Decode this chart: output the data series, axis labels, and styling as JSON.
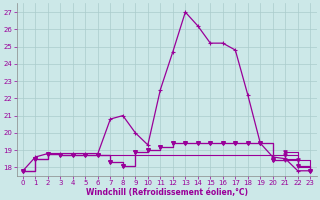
{
  "xlabel": "Windchill (Refroidissement éolien,°C)",
  "bg_color": "#cce8e8",
  "grid_color": "#aacccc",
  "line_color": "#990099",
  "xlim": [
    -0.5,
    23.5
  ],
  "ylim": [
    17.5,
    27.5
  ],
  "x_ticks": [
    0,
    1,
    2,
    3,
    4,
    5,
    6,
    7,
    8,
    9,
    10,
    11,
    12,
    13,
    14,
    15,
    16,
    17,
    18,
    19,
    20,
    21,
    22,
    23
  ],
  "y_ticks": [
    18,
    19,
    20,
    21,
    22,
    23,
    24,
    25,
    26,
    27
  ],
  "series": [
    {
      "y": [
        17.8,
        18.6,
        18.8,
        18.8,
        18.8,
        18.8,
        18.8,
        20.8,
        21.0,
        20.0,
        19.3,
        22.5,
        24.7,
        27.0,
        26.2,
        25.2,
        25.2,
        24.8,
        22.2,
        19.4,
        18.6,
        18.5,
        17.8,
        17.8
      ],
      "marker": "+",
      "ms": 3.5,
      "lw": 0.9,
      "drawstyle": "default"
    },
    {
      "y": [
        17.8,
        18.5,
        18.8,
        18.7,
        18.7,
        18.7,
        18.7,
        18.7,
        18.7,
        18.7,
        18.7,
        18.7,
        18.7,
        18.7,
        18.7,
        18.7,
        18.7,
        18.7,
        18.7,
        18.7,
        18.7,
        18.5,
        18.0,
        17.8
      ],
      "marker": null,
      "ms": 0,
      "lw": 0.8,
      "drawstyle": "steps-post"
    },
    {
      "y": [
        17.8,
        18.5,
        18.8,
        18.7,
        18.7,
        18.7,
        18.7,
        18.3,
        18.1,
        18.9,
        19.0,
        19.2,
        19.4,
        19.4,
        19.4,
        19.4,
        19.4,
        19.4,
        19.4,
        19.4,
        18.4,
        18.4,
        18.4,
        17.8
      ],
      "marker": "v",
      "ms": 2.5,
      "lw": 0.8,
      "drawstyle": "steps-post"
    },
    {
      "y": [
        17.8,
        18.5,
        18.8,
        18.7,
        18.7,
        18.7,
        18.7,
        18.3,
        18.1,
        18.9,
        19.0,
        19.2,
        19.4,
        19.4,
        19.4,
        19.4,
        19.4,
        19.4,
        19.4,
        19.4,
        18.4,
        18.7,
        18.1,
        17.8
      ],
      "marker": "v",
      "ms": 2.5,
      "lw": 0.8,
      "drawstyle": "steps-post"
    },
    {
      "y": [
        17.8,
        18.5,
        18.8,
        18.7,
        18.7,
        18.7,
        18.7,
        18.3,
        18.1,
        18.9,
        19.0,
        19.2,
        19.4,
        19.4,
        19.4,
        19.4,
        19.4,
        19.4,
        19.4,
        19.4,
        18.4,
        18.9,
        18.1,
        17.8
      ],
      "marker": "v",
      "ms": 2.5,
      "lw": 0.8,
      "drawstyle": "steps-post"
    }
  ]
}
